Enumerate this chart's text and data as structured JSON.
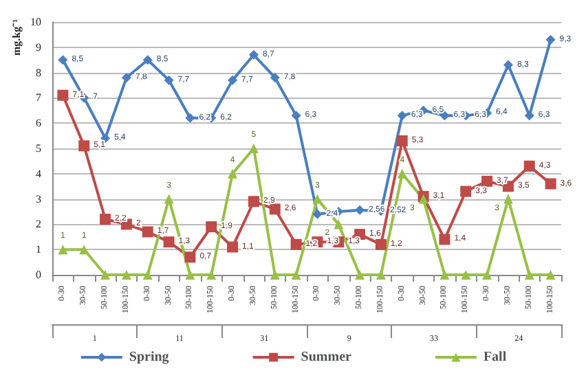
{
  "chart_data": {
    "type": "line",
    "ylabel": "mg.kg⁻¹",
    "categories": [
      "0-30",
      "30-50",
      "50-100",
      "100-150",
      "0-30",
      "30-50",
      "50-100",
      "100-150",
      "0-30",
      "30-50",
      "50-100",
      "100-150",
      "0-30",
      "30-50",
      "50-100",
      "100-150",
      "0-30",
      "30-50",
      "50-100",
      "100-150",
      "0-30",
      "30-50",
      "50-100",
      "100-150"
    ],
    "annotations": [
      "1",
      "11",
      "31",
      "9",
      "33",
      "24"
    ],
    "ylim": [
      0,
      10
    ],
    "yticks": [
      0,
      1,
      2,
      3,
      4,
      5,
      6,
      7,
      8,
      9,
      10
    ],
    "grid": "y",
    "legend": "bottom",
    "series": [
      {
        "name": "Spring",
        "color": "#4a7ebf",
        "marker": "diamond",
        "values": [
          8.5,
          7,
          5.4,
          7.8,
          8.5,
          7.7,
          6.2,
          6.2,
          7.7,
          8.7,
          7.8,
          6.3,
          2.4,
          2.5,
          2.56,
          2.52,
          6.3,
          6.5,
          6.3,
          6.3,
          6.4,
          8.3,
          6.3,
          9.3
        ],
        "value_labels": [
          "8,5",
          "7",
          "5,4",
          "7,8",
          "8,5",
          "7,7",
          "6,2",
          "6,2",
          "7,7",
          "8,7",
          "7,8",
          "6,3",
          "2,4",
          null,
          "2,56",
          "2,52",
          "6,3",
          "6,5",
          "6,3",
          "6,3",
          "6,4",
          "8,3",
          "6,3",
          "9,3"
        ]
      },
      {
        "name": "Summer",
        "color": "#be4b48",
        "marker": "square",
        "values": [
          7.1,
          5.1,
          2.2,
          2,
          1.7,
          1.3,
          0.7,
          1.9,
          1.1,
          2.9,
          2.6,
          1.2,
          1.3,
          1.3,
          1.6,
          1.2,
          5.3,
          3.1,
          1.4,
          3.3,
          3.7,
          3.5,
          4.3,
          3.6
        ],
        "value_labels": [
          "7,1",
          "5,1",
          "2,2",
          "2",
          "1,7",
          "1,3",
          "0,7",
          "1,9",
          "1,1",
          "2,9",
          "2,6",
          "1,2",
          "1,3",
          "1,3",
          "1,6",
          "1,2",
          "5,3",
          "3,1",
          "1,4",
          "3,3",
          "3,7",
          "3,5",
          "4,3",
          "3,6"
        ]
      },
      {
        "name": "Fall",
        "color": "#98c046",
        "marker": "triangle",
        "values": [
          1,
          1,
          0,
          0,
          0,
          3,
          0,
          0,
          4,
          5,
          0,
          0,
          3,
          2,
          0,
          0,
          4,
          3,
          0,
          0,
          0,
          3,
          0,
          0
        ],
        "value_labels": [
          "1",
          "1",
          null,
          null,
          null,
          "3",
          null,
          null,
          "4",
          "5",
          null,
          null,
          "3",
          "2",
          null,
          null,
          "4",
          "3",
          null,
          null,
          null,
          "3",
          null,
          null
        ]
      }
    ]
  }
}
